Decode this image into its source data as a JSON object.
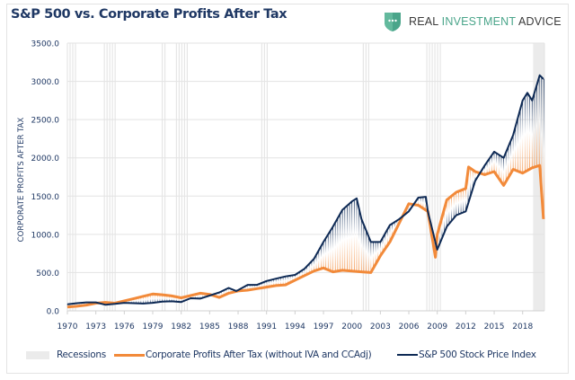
{
  "header": {
    "title": "S&P 500 vs. Corporate Profits After Tax",
    "brand": {
      "part1": "REAL ",
      "part2": "INVESTMENT",
      "part3": " ADVICE",
      "icon": "shield-chat-icon",
      "accent": "#4aa58a"
    }
  },
  "chart_data": {
    "type": "line",
    "title": "S&P 500 vs. Corporate Profits After Tax",
    "xlabel": "",
    "ylabel": "CORPORATE PROFITS AFTER TAX",
    "xlim": [
      1970,
      2020.3
    ],
    "ylim": [
      0,
      3500
    ],
    "yticks": [
      "0.0",
      "500.0",
      "1000.0",
      "1500.0",
      "2000.0",
      "2500.0",
      "3000.0",
      "3500.0"
    ],
    "ytick_values": [
      0,
      500,
      1000,
      1500,
      2000,
      2500,
      3000,
      3500
    ],
    "xticks": [
      "1970",
      "1973",
      "1976",
      "1979",
      "1982",
      "1985",
      "1988",
      "1991",
      "1994",
      "1997",
      "2000",
      "2003",
      "2006",
      "2009",
      "2012",
      "2015",
      "2018"
    ],
    "xtick_values": [
      1970,
      1973,
      1976,
      1979,
      1982,
      1985,
      1988,
      1991,
      1994,
      1997,
      2000,
      2003,
      2006,
      2009,
      2012,
      2015,
      2018
    ],
    "grid": true,
    "legend_position": "bottom",
    "recessions": [
      [
        1970.0,
        1970.9
      ],
      [
        1973.9,
        1975.2
      ],
      [
        1980.0,
        1980.5
      ],
      [
        1981.5,
        1982.9
      ],
      [
        1990.5,
        1991.2
      ],
      [
        2001.2,
        2001.9
      ],
      [
        2007.9,
        2009.5
      ],
      [
        2019.1,
        2020.3
      ]
    ],
    "series": [
      {
        "name": "Corporate Profits After Tax (without IVA and CCAdj)",
        "color": "#f28a3a",
        "x": [
          1970,
          1971,
          1972,
          1973,
          1974,
          1975,
          1976,
          1977,
          1978,
          1979,
          1980,
          1981,
          1982,
          1983,
          1984,
          1985,
          1986,
          1987,
          1988,
          1989,
          1990,
          1991,
          1992,
          1993,
          1994,
          1995,
          1996,
          1997,
          1998,
          1999,
          2000,
          2001,
          2002,
          2003,
          2004,
          2005,
          2006,
          2007,
          2008,
          2008.8,
          2009,
          2010,
          2011,
          2012,
          2012.3,
          2013,
          2014,
          2015,
          2016,
          2017,
          2018,
          2019,
          2019.8,
          2020.2
        ],
        "values": [
          50,
          60,
          75,
          100,
          110,
          100,
          130,
          160,
          190,
          220,
          210,
          195,
          170,
          200,
          230,
          215,
          175,
          230,
          260,
          270,
          290,
          310,
          330,
          340,
          400,
          460,
          520,
          560,
          510,
          530,
          520,
          510,
          500,
          720,
          900,
          1150,
          1400,
          1380,
          1300,
          700,
          1000,
          1450,
          1550,
          1600,
          1880,
          1820,
          1780,
          1820,
          1640,
          1850,
          1800,
          1870,
          1900,
          1200
        ]
      },
      {
        "name": "S&P 500 Stock Price Index",
        "color": "#0e2a55",
        "x": [
          1970,
          1971,
          1972,
          1973,
          1974,
          1975,
          1976,
          1977,
          1978,
          1979,
          1980,
          1981,
          1982,
          1983,
          1984,
          1985,
          1986,
          1987,
          1987.8,
          1988,
          1989,
          1990,
          1991,
          1992,
          1993,
          1994,
          1995,
          1996,
          1997,
          1998,
          1999,
          2000,
          2000.5,
          2001,
          2002,
          2003,
          2004,
          2005,
          2006,
          2007,
          2007.8,
          2008,
          2009,
          2010,
          2011,
          2012,
          2013,
          2014,
          2015,
          2016,
          2017,
          2018,
          2018.5,
          2019,
          2019.8,
          2020.2
        ],
        "values": [
          85,
          100,
          110,
          110,
          80,
          90,
          105,
          100,
          95,
          105,
          120,
          125,
          115,
          165,
          160,
          200,
          240,
          300,
          260,
          270,
          340,
          340,
          390,
          420,
          450,
          470,
          550,
          680,
          900,
          1100,
          1320,
          1430,
          1470,
          1200,
          900,
          900,
          1120,
          1200,
          1300,
          1480,
          1490,
          1300,
          800,
          1100,
          1250,
          1300,
          1700,
          1900,
          2080,
          2000,
          2300,
          2750,
          2850,
          2750,
          3080,
          3030
        ]
      }
    ]
  },
  "legend": {
    "items": [
      {
        "label": "Recessions"
      },
      {
        "label": "Corporate Profits After Tax (without IVA and CCAdj)"
      },
      {
        "label": "S&P 500 Stock Price Index"
      }
    ]
  }
}
